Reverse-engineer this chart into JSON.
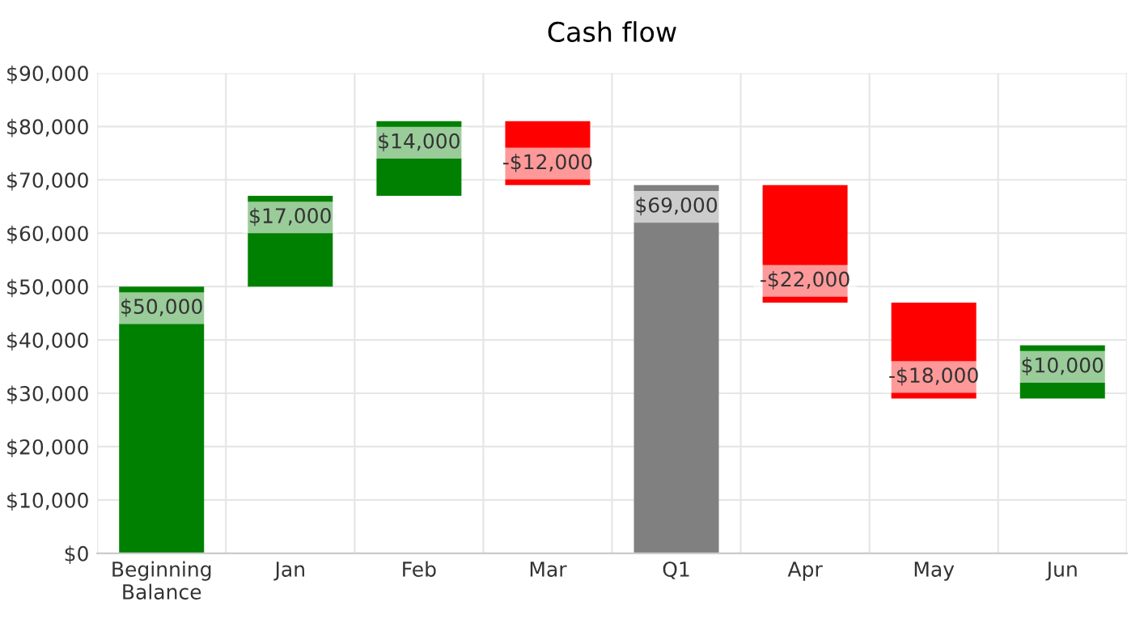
{
  "chart_data": {
    "type": "bar",
    "title": "Cash flow",
    "categories": [
      "Beginning\nBalance",
      "Jan",
      "Feb",
      "Mar",
      "Q1",
      "Apr",
      "May",
      "Jun"
    ],
    "values": [
      50000,
      17000,
      14000,
      -12000,
      69000,
      -22000,
      -18000,
      10000
    ],
    "base": [
      0,
      50000,
      67000,
      81000,
      0,
      69000,
      47000,
      29000
    ],
    "colors": [
      "#008000",
      "#008000",
      "#008000",
      "#ff0000",
      "#808080",
      "#ff0000",
      "#ff0000",
      "#008000"
    ],
    "value_labels": [
      "$50,000",
      "$17,000",
      "$14,000",
      "-$12,000",
      "$69,000",
      "-$22,000",
      "-$18,000",
      "$10,000"
    ],
    "ylim": [
      0,
      90000
    ],
    "yticks": [
      {
        "value": 0,
        "label": "$0"
      },
      {
        "value": 10000,
        "label": "$10,000"
      },
      {
        "value": 20000,
        "label": "$20,000"
      },
      {
        "value": 30000,
        "label": "$30,000"
      },
      {
        "value": 40000,
        "label": "$40,000"
      },
      {
        "value": 50000,
        "label": "$50,000"
      },
      {
        "value": 60000,
        "label": "$60,000"
      },
      {
        "value": 70000,
        "label": "$70,000"
      },
      {
        "value": 80000,
        "label": "$80,000"
      },
      {
        "value": 90000,
        "label": "$90,000"
      }
    ],
    "grid": true,
    "legend": false
  }
}
